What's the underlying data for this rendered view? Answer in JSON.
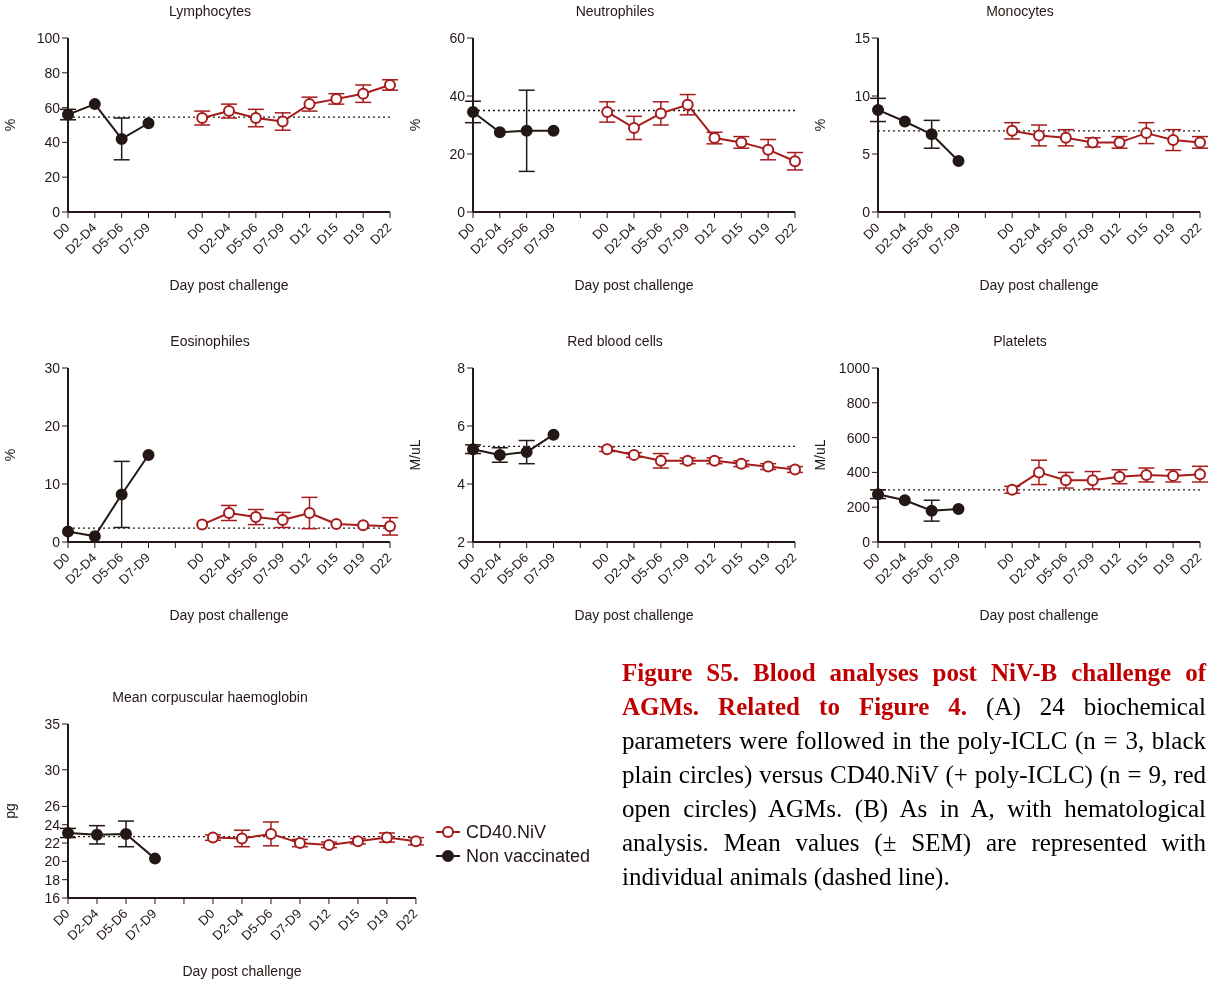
{
  "chart_data": [
    {
      "type": "line",
      "title": "Lymphocytes",
      "xlabel": "Day post challenge",
      "ylabel": "%",
      "categories": [
        "D0",
        "D2-D4",
        "D5-D6",
        "D7-D9",
        null,
        "D0",
        "D2-D4",
        "D5-D6",
        "D7-D9",
        "D12",
        "D15",
        "D19",
        "D22"
      ],
      "ylim": [
        0,
        100
      ],
      "yticks": [
        0,
        20,
        40,
        60,
        80,
        100
      ],
      "marker": "circle",
      "grid": false,
      "legend": false,
      "series": [
        {
          "color": "#a61c1c",
          "values": [
            null,
            null,
            null,
            null,
            null,
            54,
            58,
            54,
            52,
            62,
            65,
            68,
            73
          ],
          "errors": [
            null,
            null,
            null,
            null,
            null,
            4,
            4,
            5,
            5,
            4,
            3,
            5,
            3
          ]
        },
        {
          "color": "#231815",
          "values": [
            56,
            62,
            42,
            51,
            null,
            null,
            null,
            null,
            null,
            null,
            null,
            null,
            null
          ],
          "errors": [
            3,
            null,
            12,
            null,
            null,
            null,
            null,
            null,
            null,
            null,
            null,
            null,
            null
          ]
        }
      ],
      "ref_lines": [
        {
          "axis": "y",
          "value": 54.5,
          "line_style": "dotted",
          "color": "#231815"
        }
      ]
    },
    {
      "type": "line",
      "title": "Neutrophiles",
      "xlabel": "Day post challenge",
      "ylabel": "%",
      "categories": [
        "D0",
        "D2-D4",
        "D5-D6",
        "D7-D9",
        null,
        "D0",
        "D2-D4",
        "D5-D6",
        "D7-D9",
        "D12",
        "D15",
        "D19",
        "D22"
      ],
      "ylim": [
        0,
        60
      ],
      "yticks": [
        0,
        20,
        40,
        60
      ],
      "marker": "circle",
      "grid": false,
      "legend": false,
      "series": [
        {
          "color": "#a61c1c",
          "values": [
            null,
            null,
            null,
            null,
            null,
            34.5,
            29,
            34,
            37,
            25.5,
            24,
            21.5,
            17.5
          ],
          "errors": [
            null,
            null,
            null,
            null,
            null,
            3.5,
            4,
            4,
            3.5,
            2,
            2,
            3.5,
            3
          ]
        },
        {
          "color": "#231815",
          "values": [
            34.5,
            27.5,
            28,
            28,
            null,
            null,
            null,
            null,
            null,
            null,
            null,
            null,
            null
          ],
          "errors": [
            3.7,
            null,
            14,
            null,
            null,
            null,
            null,
            null,
            null,
            null,
            null,
            null,
            null
          ]
        }
      ],
      "ref_lines": [
        {
          "axis": "y",
          "value": 35,
          "line_style": "dotted",
          "color": "#231815"
        }
      ]
    },
    {
      "type": "line",
      "title": "Monocytes",
      "xlabel": "Day post challenge",
      "ylabel": "%",
      "categories": [
        "D0",
        "D2-D4",
        "D5-D6",
        "D7-D9",
        null,
        "D0",
        "D2-D4",
        "D5-D6",
        "D7-D9",
        "D12",
        "D15",
        "D19",
        "D22"
      ],
      "ylim": [
        0,
        15
      ],
      "yticks": [
        0,
        5,
        10,
        15
      ],
      "marker": "circle",
      "grid": false,
      "legend": false,
      "series": [
        {
          "color": "#a61c1c",
          "values": [
            null,
            null,
            null,
            null,
            null,
            7,
            6.6,
            6.4,
            6,
            6,
            6.8,
            6.2,
            6
          ],
          "errors": [
            null,
            null,
            null,
            null,
            null,
            0.7,
            0.9,
            0.7,
            0.4,
            0.5,
            0.9,
            0.9,
            0.5
          ]
        },
        {
          "color": "#231815",
          "values": [
            8.8,
            7.8,
            6.7,
            4.4,
            null,
            null,
            null,
            null,
            null,
            null,
            null,
            null,
            null
          ],
          "errors": [
            1,
            null,
            1.2,
            null,
            null,
            null,
            null,
            null,
            null,
            null,
            null,
            null,
            null
          ]
        }
      ],
      "ref_lines": [
        {
          "axis": "y",
          "value": 7,
          "line_style": "dotted",
          "color": "#231815"
        }
      ]
    },
    {
      "type": "line",
      "title": "Eosinophiles",
      "xlabel": "Day post challenge",
      "ylabel": "%",
      "categories": [
        "D0",
        "D2-D4",
        "D5-D6",
        "D7-D9",
        null,
        "D0",
        "D2-D4",
        "D5-D6",
        "D7-D9",
        "D12",
        "D15",
        "D19",
        "D22"
      ],
      "ylim": [
        0,
        30
      ],
      "yticks": [
        0,
        10,
        20,
        30
      ],
      "marker": "circle",
      "grid": false,
      "legend": false,
      "series": [
        {
          "color": "#a61c1c",
          "values": [
            null,
            null,
            null,
            null,
            null,
            3,
            5,
            4.3,
            3.8,
            5,
            3.1,
            2.9,
            2.7
          ],
          "errors": [
            null,
            null,
            null,
            null,
            null,
            null,
            1.3,
            1.3,
            1.3,
            2.7,
            null,
            null,
            1.5
          ]
        },
        {
          "color": "#231815",
          "values": [
            1.8,
            1,
            8.2,
            15,
            null,
            null,
            null,
            null,
            null,
            null,
            null,
            null,
            null
          ],
          "errors": [
            null,
            null,
            5.7,
            null,
            null,
            null,
            null,
            null,
            null,
            null,
            null,
            null,
            null
          ]
        }
      ],
      "ref_lines": [
        {
          "axis": "y",
          "value": 2.4,
          "line_style": "dotted",
          "color": "#231815"
        }
      ]
    },
    {
      "type": "line",
      "title": "Red blood cells",
      "xlabel": "Day post challenge",
      "ylabel": "M/uL",
      "categories": [
        "D0",
        "D2-D4",
        "D5-D6",
        "D7-D9",
        null,
        "D0",
        "D2-D4",
        "D5-D6",
        "D7-D9",
        "D12",
        "D15",
        "D19",
        "D22"
      ],
      "ylim": [
        2,
        8
      ],
      "yticks": [
        2,
        4,
        6,
        8
      ],
      "marker": "circle",
      "grid": false,
      "legend": false,
      "series": [
        {
          "color": "#a61c1c",
          "values": [
            null,
            null,
            null,
            null,
            null,
            5.2,
            5,
            4.8,
            4.8,
            4.8,
            4.7,
            4.6,
            4.5
          ],
          "errors": [
            null,
            null,
            null,
            null,
            null,
            0.08,
            0.08,
            0.25,
            0.1,
            0.1,
            0.1,
            0.1,
            0.1
          ]
        },
        {
          "color": "#231815",
          "values": [
            5.2,
            5,
            5.1,
            5.7,
            null,
            null,
            null,
            null,
            null,
            null,
            null,
            null,
            null
          ],
          "errors": [
            0.15,
            0.25,
            0.4,
            null,
            null,
            null,
            null,
            null,
            null,
            null,
            null,
            null,
            null
          ]
        }
      ],
      "ref_lines": [
        {
          "axis": "y",
          "value": 5.3,
          "line_style": "dotted",
          "color": "#231815"
        }
      ]
    },
    {
      "type": "line",
      "title": "Platelets",
      "xlabel": "Day post challenge",
      "ylabel": "M/uL",
      "categories": [
        "D0",
        "D2-D4",
        "D5-D6",
        "D7-D9",
        null,
        "D0",
        "D2-D4",
        "D5-D6",
        "D7-D9",
        "D12",
        "D15",
        "D19",
        "D22"
      ],
      "ylim": [
        0,
        1000
      ],
      "yticks": [
        0,
        200,
        400,
        600,
        800,
        1000
      ],
      "marker": "circle",
      "grid": false,
      "legend": false,
      "series": [
        {
          "color": "#a61c1c",
          "values": [
            null,
            null,
            null,
            null,
            null,
            300,
            400,
            355,
            355,
            375,
            385,
            380,
            390
          ],
          "errors": [
            null,
            null,
            null,
            null,
            null,
            20,
            70,
            45,
            50,
            40,
            40,
            35,
            45
          ]
        },
        {
          "color": "#231815",
          "values": [
            275,
            240,
            180,
            190,
            null,
            null,
            null,
            null,
            null,
            null,
            null,
            null,
            null
          ],
          "errors": [
            25,
            null,
            60,
            null,
            null,
            null,
            null,
            null,
            null,
            null,
            null,
            null,
            null
          ]
        }
      ],
      "ref_lines": [
        {
          "axis": "y",
          "value": 300,
          "line_style": "dotted",
          "color": "#231815"
        }
      ]
    },
    {
      "type": "line",
      "title": "Mean corpuscular haemoglobin",
      "xlabel": "Day post challenge",
      "ylabel": "pg",
      "categories": [
        "D0",
        "D2-D4",
        "D5-D6",
        "D7-D9",
        null,
        "D0",
        "D2-D4",
        "D5-D6",
        "D7-D9",
        "D12",
        "D15",
        "D19",
        "D22"
      ],
      "ylim": [
        16,
        35
      ],
      "yticks": [
        16,
        18,
        20,
        22,
        24,
        26,
        30,
        35
      ],
      "marker": "circle",
      "grid": false,
      "legend": "right",
      "series": [
        {
          "name": "CD40.NiV",
          "color": "#a61c1c",
          "values": [
            null,
            null,
            null,
            null,
            null,
            22.6,
            22.5,
            23,
            22,
            21.8,
            22.2,
            22.6,
            22.2
          ],
          "errors": [
            null,
            null,
            null,
            null,
            null,
            0.3,
            0.9,
            1.3,
            0.4,
            0.3,
            0.3,
            0.5,
            0.4
          ]
        },
        {
          "name": "Non vaccinated",
          "color": "#231815",
          "values": [
            23.1,
            22.9,
            23,
            20.3,
            null,
            null,
            null,
            null,
            null,
            null,
            null,
            null,
            null
          ],
          "errors": [
            0.5,
            1,
            1.4,
            null,
            null,
            null,
            null,
            null,
            null,
            null,
            null,
            null,
            null
          ]
        }
      ],
      "ref_lines": [
        {
          "axis": "y",
          "value": 22.7,
          "line_style": "dotted",
          "color": "#231815"
        }
      ]
    },
    {
      "type": "other",
      "title": "Figure S5. Blood analyses post NiV-B challenge of AGMs. Related to Figure 4.",
      "annotations": [
        "(A) 24 biochemical parameters were followed in the poly-ICLC (n = 3, black plain circles) versus CD40.NiV (+ poly-ICLC) (n = 9, red open circles) AGMs. (B) As in A, with hematological analysis. Mean values (± SEM) are represented with individual animals (dashed line)."
      ]
    }
  ]
}
